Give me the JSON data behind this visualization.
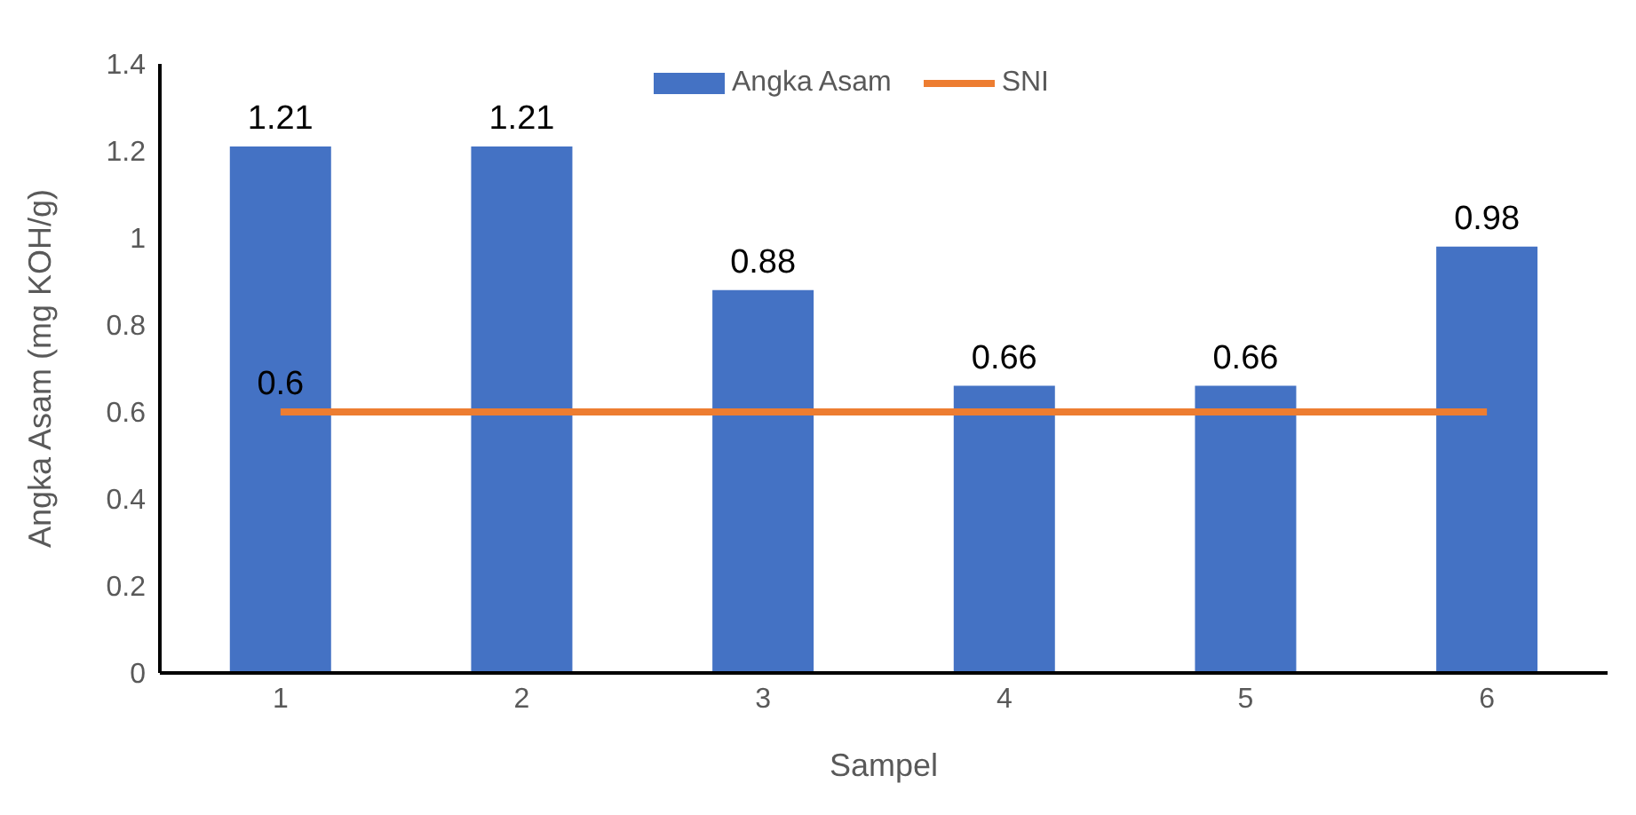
{
  "chart_data": {
    "type": "bar",
    "xlabel": "Sampel",
    "ylabel": "Angka Asam (mg KOH/g)",
    "categories": [
      "1",
      "2",
      "3",
      "4",
      "5",
      "6"
    ],
    "series": [
      {
        "name": "Angka Asam",
        "color": "#4472c4",
        "values": [
          1.21,
          1.21,
          0.88,
          0.66,
          0.66,
          0.98
        ],
        "value_labels": [
          "1.21",
          "1.21",
          "0.88",
          "0.66",
          "0.66",
          "0.98"
        ]
      },
      {
        "name": "SNI",
        "type": "line",
        "color": "#ed7d31",
        "values": [
          0.6,
          0.6,
          0.6,
          0.6,
          0.6,
          0.6
        ],
        "value_labels": [
          "0.6",
          null,
          null,
          null,
          null,
          null
        ]
      }
    ],
    "ylim": [
      0,
      1.4
    ],
    "yticks": [
      0,
      0.2,
      0.4,
      0.6,
      0.8,
      1,
      1.2,
      1.4
    ],
    "legend": "top",
    "marker": "none"
  }
}
